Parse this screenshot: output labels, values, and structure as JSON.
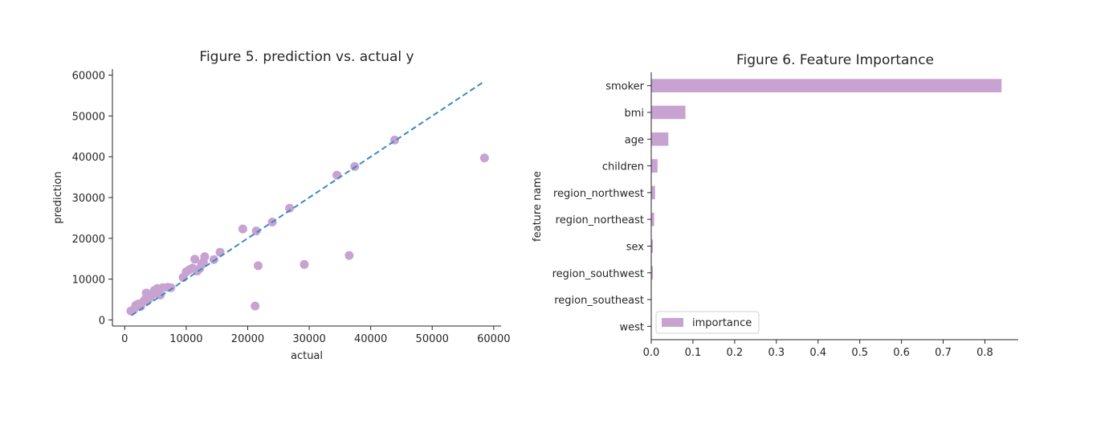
{
  "chart_data": [
    {
      "type": "scatter",
      "title": "Figure 5. prediction vs. actual y",
      "xlabel": "actual",
      "ylabel": "prediction",
      "xlim": [
        -2000,
        61200
      ],
      "ylim": [
        -1500,
        61500
      ],
      "xticks": [
        "0",
        "10000",
        "20000",
        "30000",
        "40000",
        "50000",
        "60000"
      ],
      "xtick_values": [
        0,
        10000,
        20000,
        30000,
        40000,
        50000,
        60000
      ],
      "yticks": [
        "0",
        "10000",
        "20000",
        "30000",
        "40000",
        "50000",
        "60000"
      ],
      "ytick_values": [
        0,
        10000,
        20000,
        30000,
        40000,
        50000,
        60000
      ],
      "point_color": "#c8a2d0",
      "line_color": "#3b8ac4",
      "reference_line": {
        "x": [
          1100,
          58500
        ],
        "y": [
          1100,
          58500
        ],
        "style": "dashed"
      },
      "grid": false,
      "points": [
        [
          1000,
          2200
        ],
        [
          1500,
          2600
        ],
        [
          1800,
          3600
        ],
        [
          2200,
          3900
        ],
        [
          2600,
          3300
        ],
        [
          3100,
          4600
        ],
        [
          3400,
          5100
        ],
        [
          3500,
          6600
        ],
        [
          3800,
          4900
        ],
        [
          4200,
          5600
        ],
        [
          4800,
          7200
        ],
        [
          5000,
          6500
        ],
        [
          5300,
          7700
        ],
        [
          5800,
          6100
        ],
        [
          6200,
          7900
        ],
        [
          7000,
          8000
        ],
        [
          7500,
          7900
        ],
        [
          9500,
          10400
        ],
        [
          10000,
          11800
        ],
        [
          10500,
          12300
        ],
        [
          11000,
          12700
        ],
        [
          11400,
          14900
        ],
        [
          11800,
          12000
        ],
        [
          12200,
          12600
        ],
        [
          12500,
          13600
        ],
        [
          12800,
          14200
        ],
        [
          13000,
          15500
        ],
        [
          14500,
          14800
        ],
        [
          15500,
          16600
        ],
        [
          19200,
          22300
        ],
        [
          21200,
          3400
        ],
        [
          21400,
          21800
        ],
        [
          21700,
          13300
        ],
        [
          24000,
          24000
        ],
        [
          26800,
          27400
        ],
        [
          29200,
          13600
        ],
        [
          34500,
          35500
        ],
        [
          36500,
          15800
        ],
        [
          37400,
          37600
        ],
        [
          43900,
          44100
        ],
        [
          58500,
          39700
        ]
      ]
    },
    {
      "type": "bar",
      "orientation": "horizontal",
      "title": "Figure 6. Feature Importance",
      "xlabel": "",
      "ylabel": "feature name",
      "xlim": [
        0,
        0.88
      ],
      "xticks": [
        "0.0",
        "0.1",
        "0.2",
        "0.3",
        "0.4",
        "0.5",
        "0.6",
        "0.7",
        "0.8"
      ],
      "xtick_values": [
        0,
        0.1,
        0.2,
        0.3,
        0.4,
        0.5,
        0.6,
        0.7,
        0.8
      ],
      "categories": [
        "smoker",
        "bmi",
        "age",
        "children",
        "region_northwest",
        "region_northeast",
        "sex",
        "region_southwest",
        "region_southeast",
        "west"
      ],
      "series": [
        {
          "name": "importance",
          "values": [
            0.84,
            0.082,
            0.041,
            0.015,
            0.009,
            0.007,
            0.004,
            0.004,
            0.001,
            0.0
          ]
        }
      ],
      "bar_color": "#c8a2d0",
      "legend_position": "lower-left",
      "grid": false
    }
  ]
}
